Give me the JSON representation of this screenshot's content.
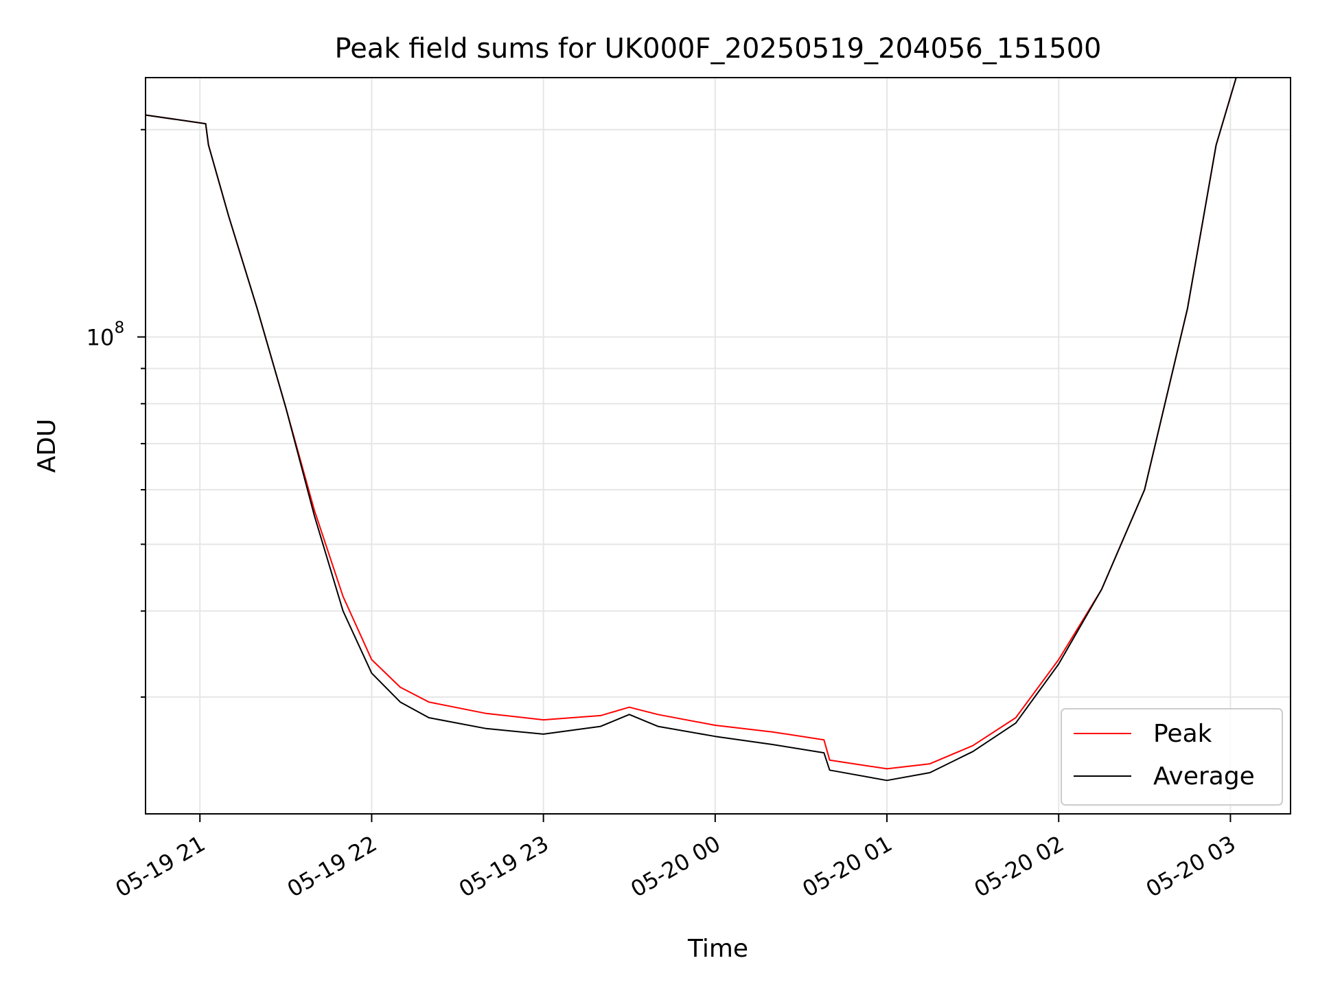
{
  "chart_data": {
    "type": "line",
    "title": "Peak field sums for UK000F_20250519_204056_151500",
    "xlabel": "Time",
    "ylabel": "ADU",
    "y_scale": "log",
    "ylim": [
      20300000,
      238000000
    ],
    "xlim": [
      "2025-05-19 20:41",
      "2025-05-20 03:21"
    ],
    "grid": true,
    "legend_position": "lower-right",
    "x_ticks": [
      {
        "t": "2025-05-19 21:00",
        "label": "05-19 21"
      },
      {
        "t": "2025-05-19 22:00",
        "label": "05-19 22"
      },
      {
        "t": "2025-05-19 23:00",
        "label": "05-19 23"
      },
      {
        "t": "2025-05-20 00:00",
        "label": "05-20 00"
      },
      {
        "t": "2025-05-20 01:00",
        "label": "05-20 01"
      },
      {
        "t": "2025-05-20 02:00",
        "label": "05-20 02"
      },
      {
        "t": "2025-05-20 03:00",
        "label": "05-20 03"
      }
    ],
    "y_major_ticks": [
      {
        "value": 100000000,
        "label_base": "10",
        "label_exp": "8"
      }
    ],
    "y_minor_ticks": [
      30000000,
      40000000,
      50000000,
      60000000,
      70000000,
      80000000,
      90000000,
      200000000
    ],
    "series": [
      {
        "name": "Peak",
        "color": "#ff0000",
        "points": [
          [
            "2025-05-19 20:41",
            210000000
          ],
          [
            "2025-05-19 21:02",
            204000000
          ],
          [
            "2025-05-19 21:03",
            190000000
          ],
          [
            "2025-05-19 21:10",
            150000000
          ],
          [
            "2025-05-19 21:20",
            110000000
          ],
          [
            "2025-05-19 21:30",
            79000000
          ],
          [
            "2025-05-19 21:40",
            56000000
          ],
          [
            "2025-05-19 21:50",
            42000000
          ],
          [
            "2025-05-19 22:00",
            34000000
          ],
          [
            "2025-05-19 22:10",
            31000000
          ],
          [
            "2025-05-19 22:20",
            29500000
          ],
          [
            "2025-05-19 22:40",
            28400000
          ],
          [
            "2025-05-19 23:00",
            27800000
          ],
          [
            "2025-05-19 23:20",
            28200000
          ],
          [
            "2025-05-19 23:30",
            29000000
          ],
          [
            "2025-05-19 23:40",
            28300000
          ],
          [
            "2025-05-20 00:00",
            27300000
          ],
          [
            "2025-05-20 00:20",
            26700000
          ],
          [
            "2025-05-20 00:38",
            26000000
          ],
          [
            "2025-05-20 00:40",
            24300000
          ],
          [
            "2025-05-20 01:00",
            23600000
          ],
          [
            "2025-05-20 01:15",
            24000000
          ],
          [
            "2025-05-20 01:30",
            25500000
          ],
          [
            "2025-05-20 01:45",
            28000000
          ],
          [
            "2025-05-20 02:00",
            34000000
          ],
          [
            "2025-05-20 02:15",
            43000000
          ],
          [
            "2025-05-20 02:30",
            60000000
          ],
          [
            "2025-05-20 02:45",
            110000000
          ],
          [
            "2025-05-20 02:55",
            190000000
          ],
          [
            "2025-05-20 03:02",
            238000000
          ],
          [
            "2025-05-20 03:21",
            238000000
          ]
        ]
      },
      {
        "name": "Average",
        "color": "#000000",
        "points": [
          [
            "2025-05-19 20:41",
            210000000
          ],
          [
            "2025-05-19 21:02",
            204000000
          ],
          [
            "2025-05-19 21:03",
            190000000
          ],
          [
            "2025-05-19 21:10",
            150000000
          ],
          [
            "2025-05-19 21:20",
            110000000
          ],
          [
            "2025-05-19 21:30",
            79000000
          ],
          [
            "2025-05-19 21:40",
            55000000
          ],
          [
            "2025-05-19 21:50",
            40000000
          ],
          [
            "2025-05-19 22:00",
            32500000
          ],
          [
            "2025-05-19 22:10",
            29500000
          ],
          [
            "2025-05-19 22:20",
            28000000
          ],
          [
            "2025-05-19 22:40",
            27000000
          ],
          [
            "2025-05-19 23:00",
            26500000
          ],
          [
            "2025-05-19 23:20",
            27200000
          ],
          [
            "2025-05-19 23:30",
            28300000
          ],
          [
            "2025-05-19 23:40",
            27200000
          ],
          [
            "2025-05-20 00:00",
            26300000
          ],
          [
            "2025-05-20 00:20",
            25600000
          ],
          [
            "2025-05-20 00:38",
            24900000
          ],
          [
            "2025-05-20 00:40",
            23500000
          ],
          [
            "2025-05-20 01:00",
            22700000
          ],
          [
            "2025-05-20 01:15",
            23300000
          ],
          [
            "2025-05-20 01:30",
            25000000
          ],
          [
            "2025-05-20 01:45",
            27500000
          ],
          [
            "2025-05-20 02:00",
            33500000
          ],
          [
            "2025-05-20 02:15",
            43000000
          ],
          [
            "2025-05-20 02:30",
            60000000
          ],
          [
            "2025-05-20 02:45",
            110000000
          ],
          [
            "2025-05-20 02:55",
            190000000
          ],
          [
            "2025-05-20 03:02",
            238000000
          ],
          [
            "2025-05-20 03:21",
            238000000
          ]
        ]
      }
    ]
  }
}
